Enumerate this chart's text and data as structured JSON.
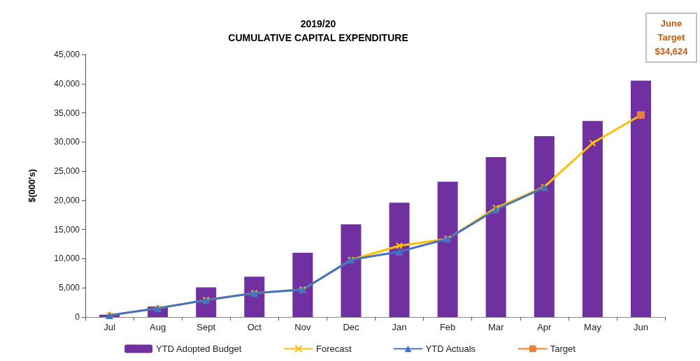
{
  "chart_data": {
    "type": "bar",
    "title": "2019/20",
    "subtitle": "CUMULATIVE CAPITAL EXPENDITURE",
    "ylabel": "$(000's)",
    "categories": [
      "Jul",
      "Aug",
      "Sept",
      "Oct",
      "Nov",
      "Dec",
      "Jan",
      "Feb",
      "Mar",
      "Apr",
      "May",
      "Jun"
    ],
    "series": [
      {
        "name": "YTD Adopted Budget",
        "color": "#7030a0",
        "values": [
          400,
          1800,
          5100,
          6900,
          11000,
          15900,
          19600,
          23200,
          27400,
          31000,
          33600,
          40500
        ]
      },
      {
        "name": "Forecast",
        "type": "line",
        "color": "#ffc000",
        "marker": "cross",
        "values": [
          300,
          1500,
          2900,
          4100,
          4700,
          9800,
          12200,
          13400,
          18700,
          22300,
          29800,
          34624
        ]
      },
      {
        "name": "YTD Actuals",
        "type": "line",
        "color": "#4472c4",
        "marker": "triangle",
        "values": [
          300,
          1500,
          2900,
          4100,
          4700,
          9800,
          11200,
          13400,
          18400,
          22200,
          null,
          null
        ]
      },
      {
        "name": "Target",
        "type": "line",
        "color": "#ed7d31",
        "marker": "square",
        "values": [
          null,
          null,
          null,
          null,
          null,
          null,
          null,
          null,
          null,
          null,
          null,
          34624
        ]
      }
    ],
    "ylim": [
      0,
      45000
    ],
    "yticks": [
      0,
      {
        "value": 5000,
        "label": "5,000"
      },
      {
        "value": 10000,
        "label": "10,000"
      },
      {
        "value": 15000,
        "label": "15,000"
      },
      {
        "value": 20000,
        "label": "20,000"
      },
      {
        "value": 25000,
        "label": "25,000"
      },
      {
        "value": 30000,
        "label": "30,000"
      },
      {
        "value": 35000,
        "label": "35,000"
      },
      {
        "value": 40000,
        "label": "40,000"
      },
      {
        "value": 45000,
        "label": "45,000"
      }
    ],
    "grid": false,
    "legend": "bottom",
    "annotations": [
      "June Target $34,624"
    ]
  }
}
